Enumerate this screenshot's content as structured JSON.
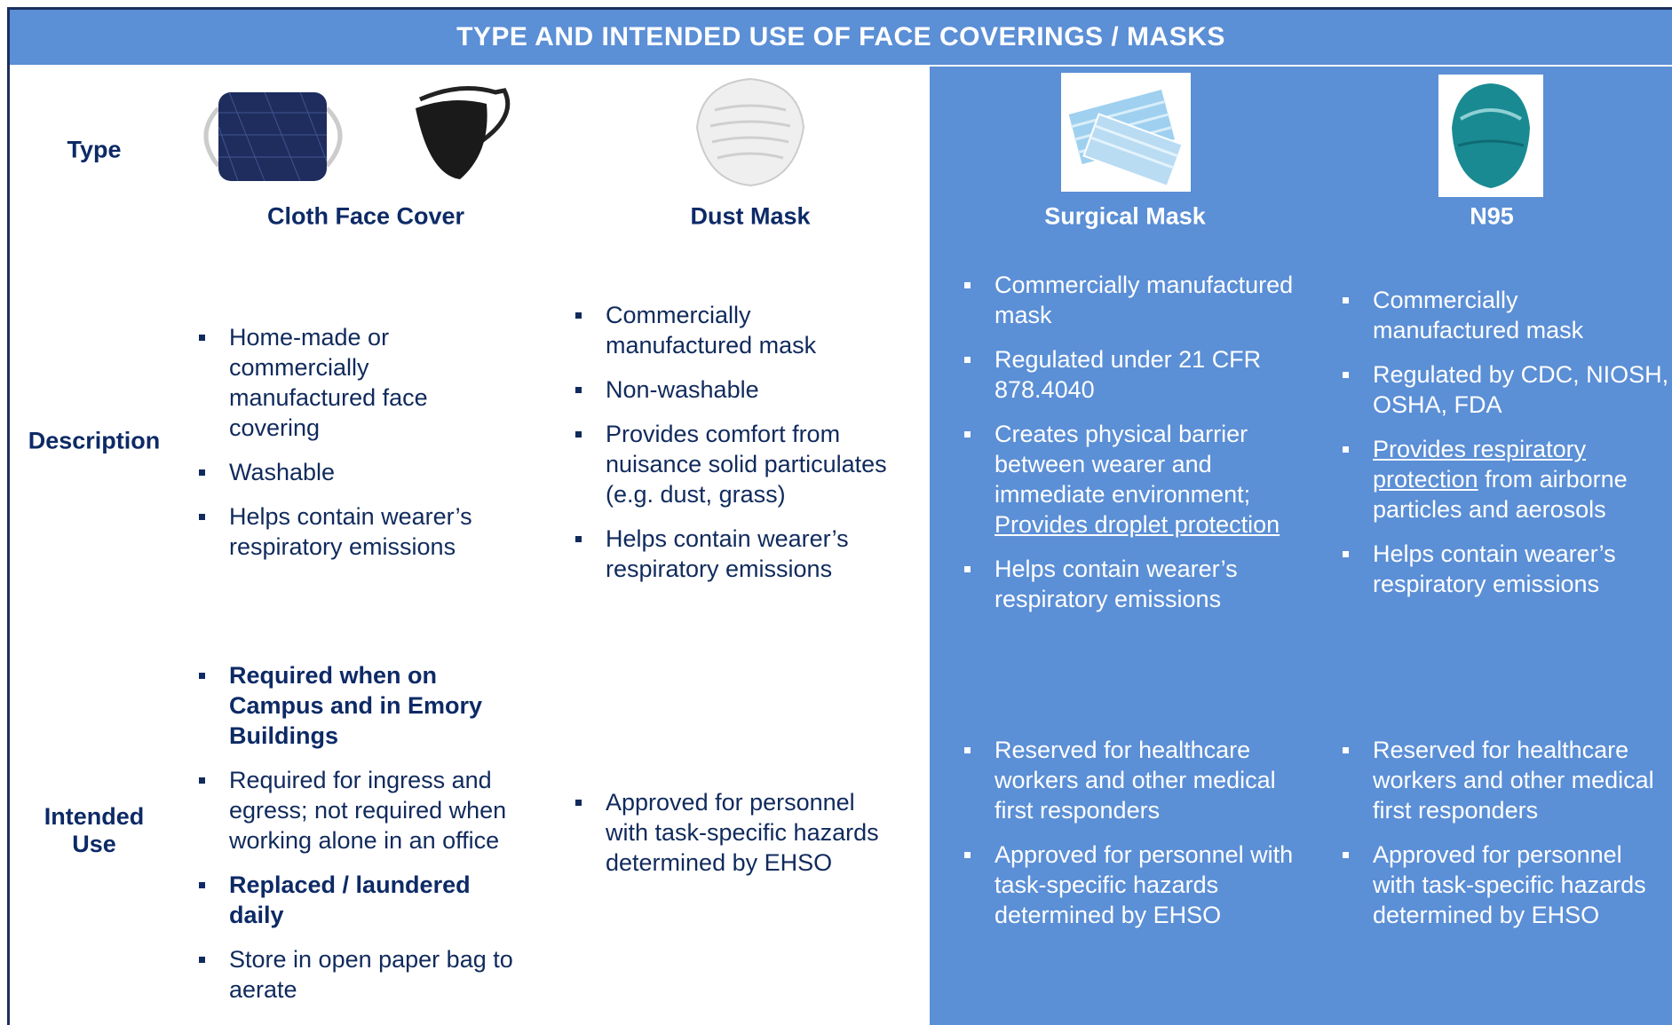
{
  "header": {
    "title": "TYPE AND INTENDED USE OF FACE COVERINGS / MASKS"
  },
  "row_labels": [
    "Type",
    "Description",
    "Intended Use"
  ],
  "columns": [
    {
      "name": "Cloth Face Cover",
      "description": [
        "Home-made or commercially manufactured face covering",
        "Washable",
        "Helps contain wearer’s respiratory emissions"
      ],
      "intended_use": [
        {
          "text": "Required when on Campus and in Emory Buildings",
          "bold": true
        },
        "Required for ingress and egress; not required when working alone in an office",
        {
          "text": "Replaced / laundered daily",
          "bold": true
        },
        "Store in open paper bag to aerate"
      ]
    },
    {
      "name": "Dust Mask",
      "description": [
        "Commercially manufactured mask",
        "Non-washable",
        "Provides comfort from nuisance solid particulates (e.g. dust, grass)",
        "Helps contain wearer’s respiratory emissions"
      ],
      "intended_use": [
        "Approved for personnel with task-specific hazards determined by EHSO"
      ]
    },
    {
      "name": "Surgical Mask",
      "description": [
        "Commercially manufactured mask",
        "Regulated under 21 CFR 878.4040",
        {
          "parts": [
            {
              "text": "Creates physical barrier between wearer and immediate environment; "
            },
            {
              "text": "Provides droplet protection",
              "underline": true
            }
          ]
        },
        "Helps contain wearer’s respiratory emissions"
      ],
      "intended_use": [
        "Reserved for healthcare workers and other medical first responders",
        "Approved for personnel with task-specific hazards determined by EHSO"
      ]
    },
    {
      "name": "N95",
      "description": [
        "Commercially manufactured mask",
        "Regulated by CDC, NIOSH, OSHA, FDA",
        {
          "parts": [
            {
              "text": "Provides respiratory protection",
              "underline": true
            },
            {
              "text": " from airborne particles and aerosols"
            }
          ]
        },
        "Helps contain wearer’s respiratory emissions"
      ],
      "intended_use": [
        "Reserved for healthcare workers and other medical first responders",
        "Approved for personnel with task-specific hazards determined by EHSO"
      ]
    }
  ]
}
